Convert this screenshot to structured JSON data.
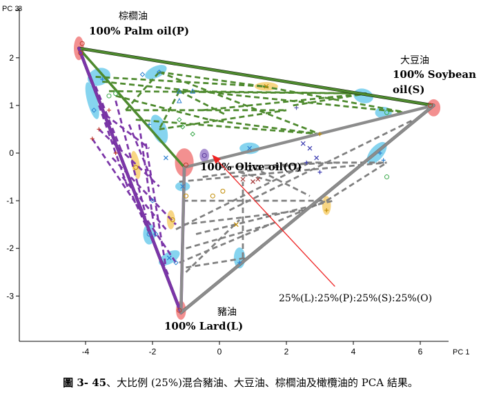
{
  "chart_data": {
    "type": "scatter",
    "xlabel": "PC 1",
    "ylabel": "PC 3",
    "xlim": [
      -5.2,
      7.0
    ],
    "ylim": [
      -3.9,
      3.0
    ],
    "x_ticks": [
      -4,
      -2,
      0,
      2,
      4,
      6
    ],
    "y_ticks": [
      2,
      1,
      0,
      -1,
      -2,
      -3
    ],
    "grid": false,
    "vertices": [
      {
        "key": "P",
        "label_zh": "棕櫚油",
        "label": "100% Palm oil(P)",
        "x": -4.2,
        "y": 2.2,
        "color": "#e8636a"
      },
      {
        "key": "S",
        "label_zh": "大豆油",
        "label": "100% Soybean oil(S)",
        "x": 6.4,
        "y": 1.0,
        "color": "#e8636a"
      },
      {
        "key": "O",
        "label_zh": "",
        "label": "100% Olive oil(O)",
        "x": -1.05,
        "y": -0.3,
        "color": "#e8636a"
      },
      {
        "key": "L",
        "label_zh": "豬油",
        "label": "100% Lard(L)",
        "x": -1.15,
        "y": -3.35,
        "color": "#e8636a"
      }
    ],
    "edges": [
      {
        "from": "P",
        "to": "S",
        "color": "#000000"
      },
      {
        "from": "P",
        "to": "L",
        "color": "#000000"
      },
      {
        "from": "S",
        "to": "L",
        "color": "#000000"
      },
      {
        "from": "P",
        "to": "O",
        "color": "#4e8a2e"
      },
      {
        "from": "O",
        "to": "S",
        "color": "#4e8a2e"
      },
      {
        "from": "P",
        "to": "S",
        "color": "#4e8a2e"
      },
      {
        "from": "P",
        "to": "L",
        "color": "#7b35a8"
      },
      {
        "from": "O",
        "to": "L",
        "color": "#7b35a8"
      },
      {
        "from": "O",
        "to": "S",
        "color": "#8c8c8c"
      },
      {
        "from": "S",
        "to": "L",
        "color": "#8c8c8c"
      },
      {
        "from": "O",
        "to": "L",
        "color": "#8c8c8c"
      }
    ],
    "dashed_lines": {
      "green": [
        [
          [
            -3.7,
            1.6
          ],
          [
            1.3,
            1.4
          ]
        ],
        [
          [
            -3.3,
            1.3
          ],
          [
            4.4,
            1.25
          ]
        ],
        [
          [
            -3.5,
            1.5
          ],
          [
            5.6,
            0.85
          ]
        ],
        [
          [
            -3.1,
            1.2
          ],
          [
            -0.3,
            0.7
          ]
        ],
        [
          [
            -2.8,
            0.9
          ],
          [
            2.0,
            0.9
          ]
        ],
        [
          [
            -2.5,
            0.7
          ],
          [
            3.0,
            0.4
          ]
        ],
        [
          [
            -1.8,
            1.7
          ],
          [
            1.3,
            1.4
          ]
        ],
        [
          [
            -1.8,
            1.7
          ],
          [
            3.0,
            0.4
          ]
        ],
        [
          [
            -1.3,
            1.3
          ],
          [
            4.4,
            1.25
          ]
        ],
        [
          [
            -1.2,
            1.3
          ],
          [
            0.2,
            0.8
          ]
        ],
        [
          [
            -1.8,
            0.5
          ],
          [
            2.0,
            0.9
          ]
        ],
        [
          [
            -0.3,
            0.7
          ],
          [
            3.0,
            0.4
          ]
        ],
        [
          [
            -2.8,
            0.9
          ],
          [
            -1.8,
            1.7
          ]
        ],
        [
          [
            -1.2,
            1.3
          ],
          [
            -1.8,
            0.5
          ]
        ],
        [
          [
            1.3,
            1.4
          ],
          [
            5.6,
            0.85
          ]
        ],
        [
          [
            2.2,
            1.0
          ],
          [
            4.4,
            1.25
          ]
        ],
        [
          [
            -0.5,
            0.9
          ],
          [
            4.4,
            1.25
          ]
        ]
      ],
      "purple": [
        [
          [
            -3.8,
            0.3
          ],
          [
            -1.3,
            -2.3
          ]
        ],
        [
          [
            -3.6,
            0.5
          ],
          [
            -1.8,
            -0.7
          ]
        ],
        [
          [
            -3.4,
            0.8
          ],
          [
            -2.1,
            0.1
          ]
        ],
        [
          [
            -3.2,
            -0.1
          ],
          [
            -1.3,
            -1.5
          ]
        ],
        [
          [
            -2.9,
            -0.5
          ],
          [
            -1.6,
            -1.6
          ]
        ],
        [
          [
            -2.6,
            -0.9
          ],
          [
            -1.5,
            -2.6
          ]
        ],
        [
          [
            -3.6,
            1.0
          ],
          [
            -2.7,
            -0.8
          ]
        ],
        [
          [
            -3.1,
            1.1
          ],
          [
            -2.2,
            -1.3
          ]
        ],
        [
          [
            -2.4,
            0.6
          ],
          [
            -1.9,
            -1.8
          ]
        ],
        [
          [
            -2.2,
            0.2
          ],
          [
            -1.6,
            -2.4
          ]
        ],
        [
          [
            -3.7,
            1.4
          ],
          [
            -2.9,
            0.0
          ]
        ],
        [
          [
            -2.7,
            0.6
          ],
          [
            -2.0,
            -0.6
          ]
        ]
      ],
      "grey": [
        [
          [
            -1.2,
            -0.6
          ],
          [
            5.0,
            -0.2
          ]
        ],
        [
          [
            -1.1,
            -1.0
          ],
          [
            3.2,
            -1.0
          ]
        ],
        [
          [
            -1.1,
            -1.5
          ],
          [
            2.5,
            -1.2
          ]
        ],
        [
          [
            -1.0,
            -2.0
          ],
          [
            1.5,
            -1.5
          ]
        ],
        [
          [
            -1.0,
            -2.4
          ],
          [
            0.8,
            -2.2
          ]
        ],
        [
          [
            -0.5,
            -0.5
          ],
          [
            2.7,
            -0.2
          ]
        ],
        [
          [
            0.0,
            -0.3
          ],
          [
            3.6,
            -0.2
          ]
        ],
        [
          [
            0.6,
            -0.4
          ],
          [
            1.6,
            -0.6
          ]
        ],
        [
          [
            1.0,
            -0.3
          ],
          [
            2.7,
            -0.9
          ]
        ],
        [
          [
            -0.7,
            -1.7
          ],
          [
            3.4,
            -1.0
          ]
        ],
        [
          [
            -1.0,
            -2.5
          ],
          [
            0.6,
            -1.4
          ]
        ],
        [
          [
            0.7,
            -2.2
          ],
          [
            0.7,
            -0.6
          ]
        ],
        [
          [
            2.6,
            -0.2
          ],
          [
            5.0,
            -0.2
          ]
        ],
        [
          [
            3.2,
            -1.0
          ],
          [
            5.0,
            -0.2
          ]
        ],
        [
          [
            0.3,
            -1.2
          ],
          [
            5.8,
            0.7
          ]
        ],
        [
          [
            -1.2,
            -2.3
          ],
          [
            3.2,
            -1.0
          ]
        ],
        [
          [
            -1.3,
            -1.6
          ],
          [
            2.7,
            -0.2
          ]
        ]
      ]
    },
    "ellipses": [
      {
        "x": -4.2,
        "y": 2.2,
        "rx": 0.15,
        "ry": 0.25,
        "angle": 0,
        "color": "#ef6b6b"
      },
      {
        "x": 6.4,
        "y": 0.95,
        "rx": 0.2,
        "ry": 0.18,
        "angle": 0,
        "color": "#ef6b6b"
      },
      {
        "x": -1.05,
        "y": -0.2,
        "rx": 0.28,
        "ry": 0.3,
        "angle": 0,
        "color": "#ef6b6b"
      },
      {
        "x": -1.15,
        "y": -3.3,
        "rx": 0.15,
        "ry": 0.2,
        "angle": 0,
        "color": "#ef6b6b"
      },
      {
        "x": -3.6,
        "y": 1.6,
        "rx": 0.35,
        "ry": 0.18,
        "angle": -20,
        "color": "#5ec5ea"
      },
      {
        "x": -3.8,
        "y": 1.1,
        "rx": 0.15,
        "ry": 0.4,
        "angle": -15,
        "color": "#5ec5ea"
      },
      {
        "x": -1.9,
        "y": 1.7,
        "rx": 0.35,
        "ry": 0.12,
        "angle": -25,
        "color": "#5ec5ea"
      },
      {
        "x": -1.8,
        "y": 0.5,
        "rx": 0.22,
        "ry": 0.32,
        "angle": -20,
        "color": "#5ec5ea"
      },
      {
        "x": 0.9,
        "y": 0.1,
        "rx": 0.3,
        "ry": 0.12,
        "angle": 0,
        "color": "#5ec5ea"
      },
      {
        "x": 4.3,
        "y": 1.2,
        "rx": 0.3,
        "ry": 0.15,
        "angle": 15,
        "color": "#5ec5ea"
      },
      {
        "x": 4.9,
        "y": 0.85,
        "rx": 0.25,
        "ry": 0.12,
        "angle": 0,
        "color": "#5ec5ea"
      },
      {
        "x": 4.7,
        "y": 0.0,
        "rx": 0.4,
        "ry": 0.14,
        "angle": -50,
        "color": "#5ec5ea"
      },
      {
        "x": -1.1,
        "y": -0.7,
        "rx": 0.22,
        "ry": 0.1,
        "angle": 0,
        "color": "#5ec5ea"
      },
      {
        "x": -2.1,
        "y": -1.7,
        "rx": 0.18,
        "ry": 0.22,
        "angle": 0,
        "color": "#5ec5ea"
      },
      {
        "x": -1.5,
        "y": -2.2,
        "rx": 0.35,
        "ry": 0.12,
        "angle": -30,
        "color": "#5ec5ea"
      },
      {
        "x": 0.6,
        "y": -2.2,
        "rx": 0.17,
        "ry": 0.22,
        "angle": 0,
        "color": "#5ec5ea"
      },
      {
        "x": 1.4,
        "y": 1.4,
        "rx": 0.35,
        "ry": 0.09,
        "angle": 0,
        "color": "#f5c85b"
      },
      {
        "x": -2.5,
        "y": -0.25,
        "rx": 0.12,
        "ry": 0.3,
        "angle": -10,
        "color": "#f5c85b"
      },
      {
        "x": 3.2,
        "y": -1.1,
        "rx": 0.13,
        "ry": 0.2,
        "angle": 0,
        "color": "#f5c85b"
      },
      {
        "x": -1.45,
        "y": -1.4,
        "rx": 0.12,
        "ry": 0.2,
        "angle": 0,
        "color": "#f5c85b"
      },
      {
        "x": -0.45,
        "y": -0.05,
        "rx": 0.14,
        "ry": 0.14,
        "angle": 0,
        "color": "#8f6fc4"
      }
    ],
    "points": [
      {
        "x": -4.15,
        "y": 2.1,
        "m": "o",
        "c": "#c0392b"
      },
      {
        "x": -4.1,
        "y": 2.3,
        "m": "o",
        "c": "#c0392b"
      },
      {
        "x": 6.3,
        "y": 1.0,
        "m": "o",
        "c": "#c0392b"
      },
      {
        "x": -1.0,
        "y": -0.25,
        "m": "o",
        "c": "#c0392b"
      },
      {
        "x": -1.2,
        "y": -3.3,
        "m": "o",
        "c": "#c0392b"
      },
      {
        "x": -3.5,
        "y": 1.55,
        "m": "+",
        "c": "#2a7fd0"
      },
      {
        "x": -3.75,
        "y": 0.9,
        "m": "d",
        "c": "#2a7fd0"
      },
      {
        "x": -2.3,
        "y": 1.65,
        "m": "d",
        "c": "#2a7fd0"
      },
      {
        "x": -1.8,
        "y": 1.7,
        "m": "d",
        "c": "#2a7fd0"
      },
      {
        "x": -1.2,
        "y": 1.3,
        "m": "^",
        "c": "#2a7fd0"
      },
      {
        "x": -0.8,
        "y": 1.3,
        "m": "^",
        "c": "#2a7fd0"
      },
      {
        "x": -1.2,
        "y": 1.1,
        "m": "^",
        "c": "#2a7fd0"
      },
      {
        "x": -3.3,
        "y": 1.2,
        "m": "o",
        "c": "#3aa84a"
      },
      {
        "x": -3.1,
        "y": 1.25,
        "m": "o",
        "c": "#3aa84a"
      },
      {
        "x": -1.2,
        "y": 0.7,
        "m": "d",
        "c": "#3aa84a"
      },
      {
        "x": -1.1,
        "y": 0.55,
        "m": "d",
        "c": "#3aa84a"
      },
      {
        "x": -0.8,
        "y": 0.4,
        "m": "d",
        "c": "#3aa84a"
      },
      {
        "x": -2.1,
        "y": 0.6,
        "m": "+",
        "c": "#2a7fd0"
      },
      {
        "x": 0.9,
        "y": 0.1,
        "m": "x",
        "c": "#2a7fd0"
      },
      {
        "x": 2.3,
        "y": 0.95,
        "m": "+",
        "c": "#5a5aaa"
      },
      {
        "x": 1.4,
        "y": 1.4,
        "m": "x",
        "c": "#c08a00"
      },
      {
        "x": 3.0,
        "y": 0.4,
        "m": "+",
        "c": "#c08a00"
      },
      {
        "x": 2.5,
        "y": 0.2,
        "m": "x",
        "c": "#3a3ab0"
      },
      {
        "x": 2.7,
        "y": 0.1,
        "m": "x",
        "c": "#3a3ab0"
      },
      {
        "x": 2.9,
        "y": -0.1,
        "m": "x",
        "c": "#3a3ab0"
      },
      {
        "x": 2.6,
        "y": -0.2,
        "m": "+",
        "c": "#3a3ab0"
      },
      {
        "x": 3.0,
        "y": -0.4,
        "m": "+",
        "c": "#3a3ab0"
      },
      {
        "x": 5.0,
        "y": 0.85,
        "m": "o",
        "c": "#3aa84a"
      },
      {
        "x": 4.8,
        "y": 0.0,
        "m": "+",
        "c": "#2a7fd0"
      },
      {
        "x": 4.9,
        "y": -0.15,
        "m": "+",
        "c": "#2a7fd0"
      },
      {
        "x": -3.8,
        "y": 0.3,
        "m": "+",
        "c": "#c0392b"
      },
      {
        "x": -3.6,
        "y": 0.5,
        "m": "+",
        "c": "#c0392b"
      },
      {
        "x": -3.3,
        "y": 0.9,
        "m": "+",
        "c": "#c0392b"
      },
      {
        "x": -2.5,
        "y": -0.3,
        "m": "o",
        "c": "#c08a00"
      },
      {
        "x": -2.1,
        "y": -1.7,
        "m": "o",
        "c": "#2a7fd0"
      },
      {
        "x": -1.4,
        "y": -1.4,
        "m": "o",
        "c": "#c08a00"
      },
      {
        "x": -1.6,
        "y": -0.1,
        "m": "x",
        "c": "#2a7fd0"
      },
      {
        "x": -1.1,
        "y": -0.7,
        "m": "x",
        "c": "#2a7fd0"
      },
      {
        "x": -1.0,
        "y": -0.9,
        "m": "o",
        "c": "#c08a00"
      },
      {
        "x": -0.45,
        "y": -0.05,
        "m": "o",
        "c": "#5a3a9a"
      },
      {
        "x": 0.1,
        "y": -0.8,
        "m": "o",
        "c": "#c08a00"
      },
      {
        "x": -0.2,
        "y": -0.9,
        "m": "o",
        "c": "#c08a00"
      },
      {
        "x": 0.7,
        "y": -0.55,
        "m": "x",
        "c": "#a03030"
      },
      {
        "x": 1.0,
        "y": -0.6,
        "m": "x",
        "c": "#a03030"
      },
      {
        "x": 1.15,
        "y": -0.55,
        "m": "x",
        "c": "#a03030"
      },
      {
        "x": 0.5,
        "y": -1.5,
        "m": "x",
        "c": "#c08a00"
      },
      {
        "x": 0.6,
        "y": -2.3,
        "m": "+",
        "c": "#2a7fd0"
      },
      {
        "x": 3.2,
        "y": -1.2,
        "m": "+",
        "c": "#c08a00"
      },
      {
        "x": -1.5,
        "y": -2.2,
        "m": "x",
        "c": "#2a7fd0"
      },
      {
        "x": -1.3,
        "y": -2.3,
        "m": "d",
        "c": "#2a7fd0"
      },
      {
        "x": -2.0,
        "y": -1.0,
        "m": "d",
        "c": "#2a7fd0"
      },
      {
        "x": -1.9,
        "y": -1.7,
        "m": "d",
        "c": "#2a7fd0"
      },
      {
        "x": -3.1,
        "y": 0.0,
        "m": "+",
        "c": "#c0392b"
      },
      {
        "x": 5.0,
        "y": -0.5,
        "m": "o",
        "c": "#3aa84a"
      }
    ],
    "annotation": {
      "text": "25%(L):25%(P):25%(S):25%(O)",
      "arrow_from": [
        3.45,
        -2.8
      ],
      "arrow_to": [
        -0.2,
        -0.05
      ],
      "color": "#ee2222"
    }
  },
  "caption": {
    "figure_number": "圖 3- 45",
    "text": "、大比例 (25%)混合豬油、大豆油、棕櫚油及橄欖油的 PCA 結果。"
  }
}
